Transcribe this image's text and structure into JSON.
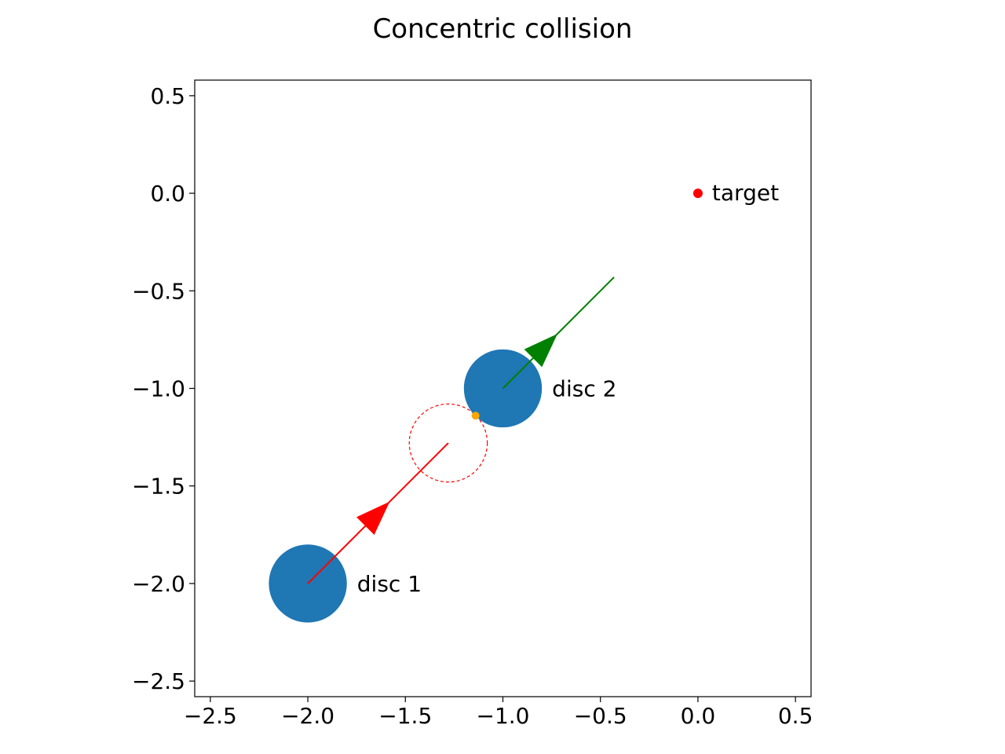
{
  "chart_data": {
    "type": "scatter",
    "title": "Concentric collision",
    "xlabel": "",
    "ylabel": "",
    "xlim": [
      -2.58,
      0.58
    ],
    "ylim": [
      -2.58,
      0.58
    ],
    "grid": false,
    "legend": null,
    "x_ticks": [
      -2.5,
      -2.0,
      -1.5,
      -1.0,
      -0.5,
      0.0,
      0.5
    ],
    "x_tick_labels": [
      "−2.5",
      "−2.0",
      "−1.5",
      "−1.0",
      "−0.5",
      "0.0",
      "0.5"
    ],
    "y_ticks": [
      0.5,
      0.0,
      -0.5,
      -1.0,
      -1.5,
      -2.0,
      -2.5
    ],
    "y_tick_labels": [
      "0.5",
      "0.0",
      "−0.5",
      "−1.0",
      "−1.5",
      "−2.0",
      "−2.5"
    ],
    "discs": [
      {
        "label": "disc 1",
        "center": [
          -2.0,
          -2.0
        ],
        "radius": 0.2,
        "color": "#1f77b4",
        "velocity_end": [
          -1.28,
          -1.28
        ],
        "arrow_at": [
          -1.58,
          -1.58
        ],
        "velocity_color": "#ff0000"
      },
      {
        "label": "disc 2",
        "center": [
          -1.0,
          -1.0
        ],
        "radius": 0.2,
        "color": "#1f77b4",
        "velocity_end": [
          -0.43,
          -0.43
        ],
        "arrow_at": [
          -0.72,
          -0.72
        ],
        "velocity_color": "#008000"
      }
    ],
    "collision_circle": {
      "center": [
        -1.28,
        -1.28
      ],
      "radius": 0.2,
      "color": "#ff0000",
      "style": "dashed"
    },
    "contact_point": {
      "x": -1.14,
      "y": -1.14,
      "color": "#ffa500"
    },
    "target": {
      "label": "target",
      "x": 0.0,
      "y": 0.0,
      "color": "#ff0000"
    }
  }
}
